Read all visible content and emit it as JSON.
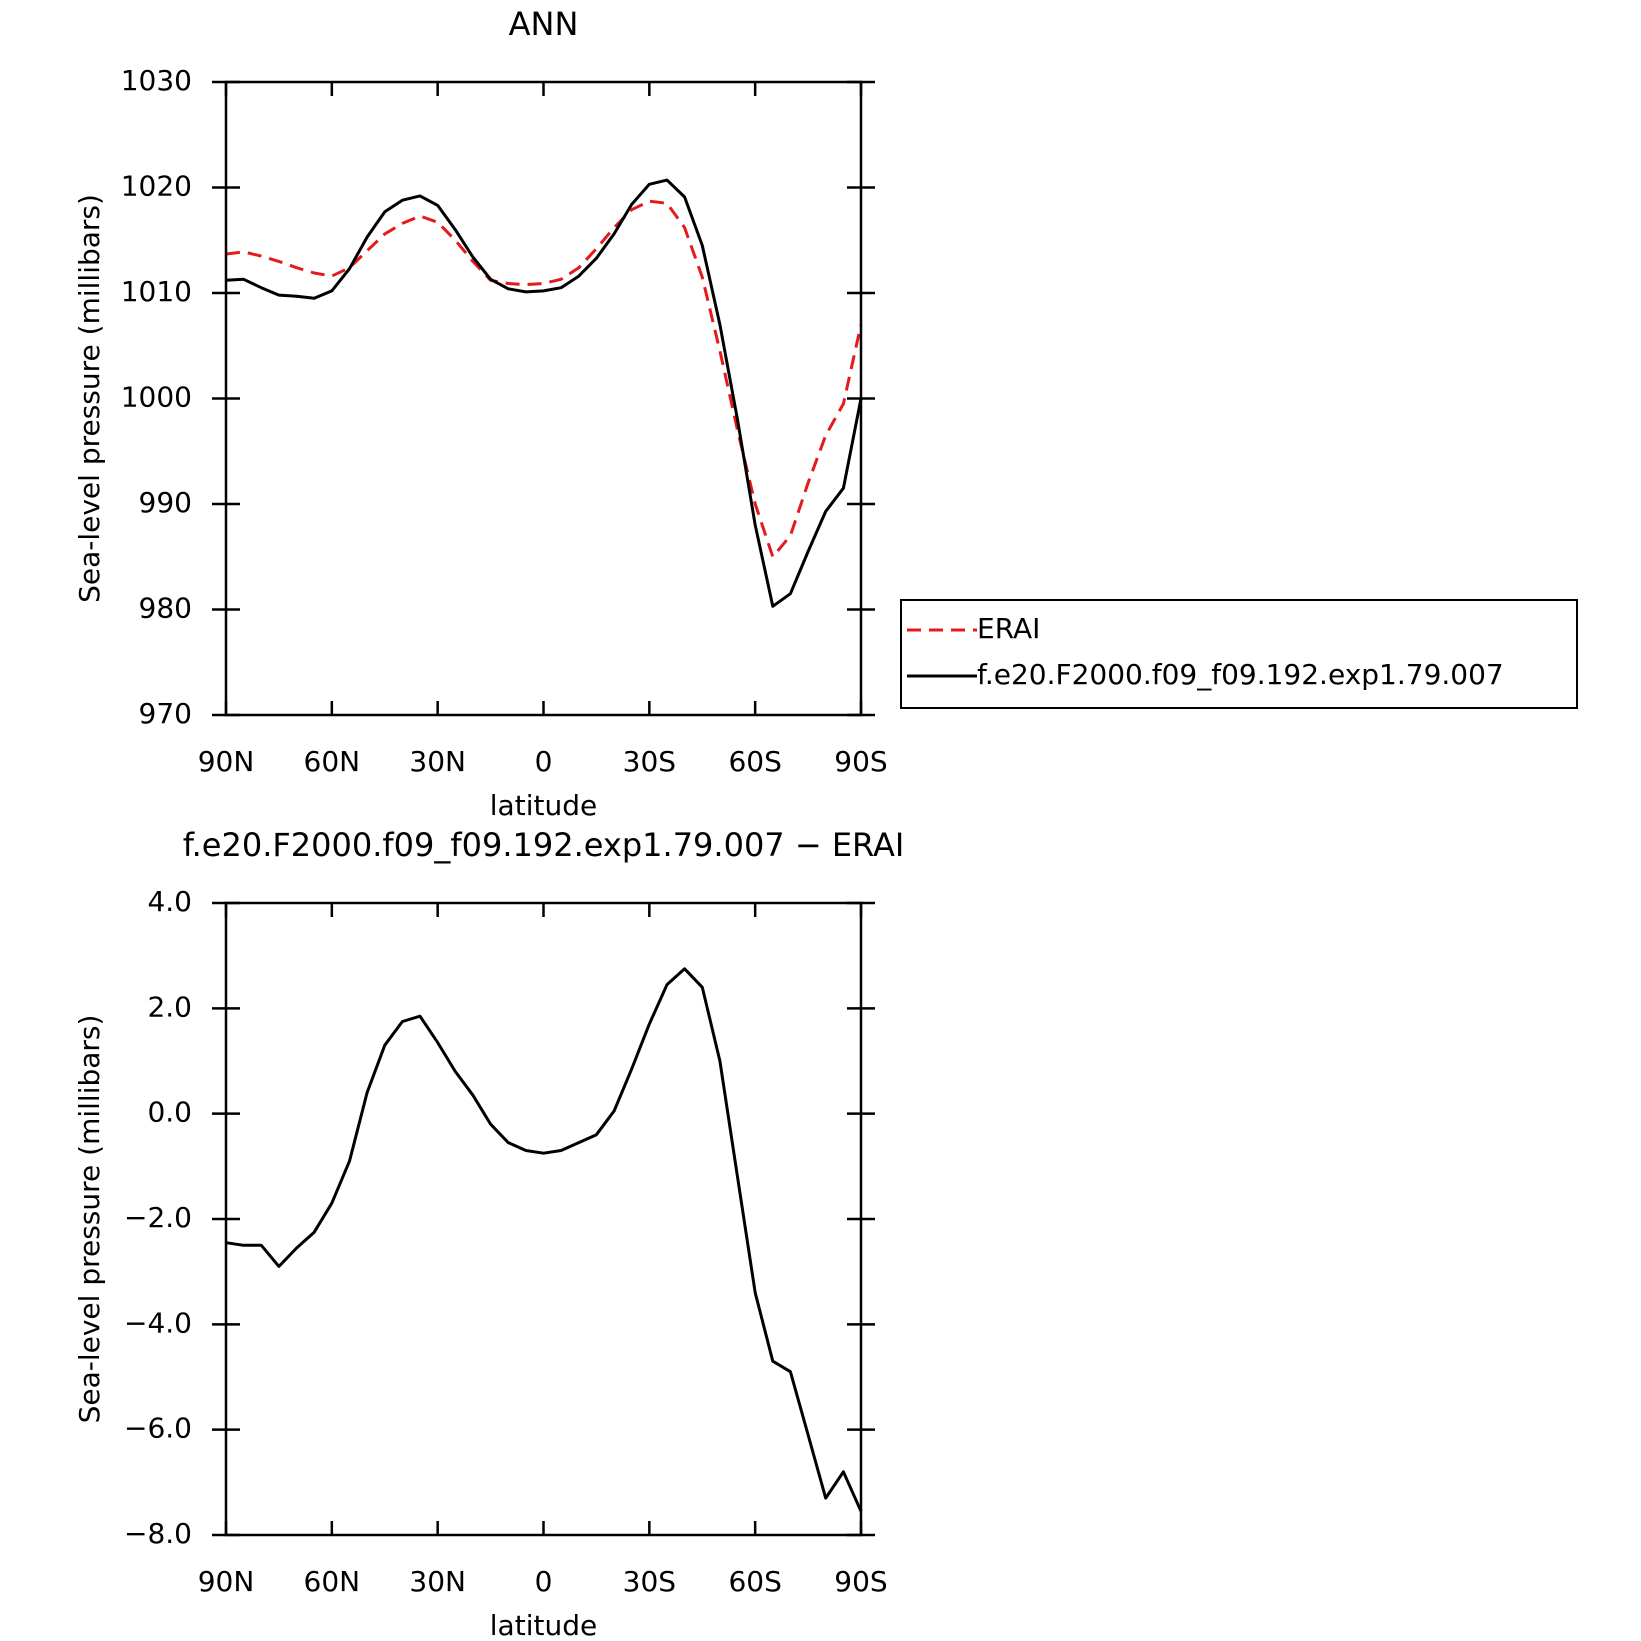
{
  "chart_data": [
    {
      "type": "line",
      "title": "ANN",
      "xlabel": "latitude",
      "ylabel": "Sea-level pressure (millibars)",
      "x": [
        90,
        85,
        80,
        75,
        70,
        65,
        60,
        55,
        50,
        45,
        40,
        35,
        30,
        25,
        20,
        15,
        10,
        5,
        0,
        -5,
        -10,
        -15,
        -20,
        -25,
        -30,
        -35,
        -40,
        -45,
        -50,
        -55,
        -60,
        -65,
        -70,
        -75,
        -80,
        -85,
        -90
      ],
      "series": [
        {
          "name": "ERAI",
          "color": "#e41a1c",
          "dash": true,
          "values": [
            1013.7,
            1013.9,
            1013.5,
            1013.0,
            1012.4,
            1011.9,
            1011.6,
            1012.4,
            1014.0,
            1015.6,
            1016.6,
            1017.3,
            1016.7,
            1015.0,
            1013.0,
            1011.2,
            1010.9,
            1010.8,
            1010.9,
            1011.3,
            1012.4,
            1014.2,
            1016.2,
            1017.9,
            1018.7,
            1018.5,
            1016.2,
            1011.5,
            1004.5,
            997,
            990,
            985.0,
            987,
            992,
            996.5,
            999.5,
            1007
          ]
        },
        {
          "name": "f.e20.F2000.f09_f09.192.exp1.79.007",
          "color": "#000000",
          "dash": false,
          "values": [
            1011.2,
            1011.3,
            1010.5,
            1009.8,
            1009.7,
            1009.5,
            1010.2,
            1012.3,
            1015.3,
            1017.7,
            1018.8,
            1019.2,
            1018.3,
            1016.0,
            1013.4,
            1011.3,
            1010.4,
            1010.1,
            1010.2,
            1010.5,
            1011.6,
            1013.3,
            1015.6,
            1018.4,
            1020.3,
            1020.7,
            1019.1,
            1014.5,
            1007,
            998,
            988,
            980.3,
            981.5,
            985.5,
            989.3,
            991.5,
            1000
          ]
        }
      ],
      "xlim": [
        90,
        -90
      ],
      "xticks": [
        {
          "value": 90,
          "label": "90N"
        },
        {
          "value": 60,
          "label": "60N"
        },
        {
          "value": 30,
          "label": "30N"
        },
        0,
        {
          "value": -30,
          "label": "30S"
        },
        {
          "value": -60,
          "label": "60S"
        },
        {
          "value": -90,
          "label": "90S"
        }
      ],
      "ylim": [
        970,
        1030
      ],
      "yticks": [
        970,
        980,
        990,
        1000,
        1010,
        1020,
        1030
      ],
      "legend": "right"
    },
    {
      "type": "line",
      "title": "f.e20.F2000.f09_f09.192.exp1.79.007 − ERAI",
      "xlabel": "latitude",
      "ylabel": "Sea-level pressure (millibars)",
      "x": [
        90,
        85,
        80,
        75,
        70,
        65,
        60,
        55,
        50,
        45,
        40,
        35,
        30,
        25,
        20,
        15,
        10,
        5,
        0,
        -5,
        -10,
        -15,
        -20,
        -25,
        -30,
        -35,
        -40,
        -45,
        -50,
        -55,
        -60,
        -65,
        -70,
        -75,
        -80,
        -85,
        -90
      ],
      "values": [
        -2.45,
        -2.5,
        -2.5,
        -2.9,
        -2.55,
        -2.25,
        -1.7,
        -0.9,
        0.4,
        1.3,
        1.75,
        1.85,
        1.35,
        0.8,
        0.35,
        -0.2,
        -0.55,
        -0.7,
        -0.75,
        -0.7,
        -0.55,
        -0.4,
        0.05,
        0.85,
        1.7,
        2.45,
        2.75,
        2.4,
        1.0,
        -1.2,
        -3.4,
        -4.7,
        -4.9,
        -6.1,
        -7.3,
        -6.8,
        -7.55
      ],
      "color": "#000000",
      "xlim": [
        90,
        -90
      ],
      "xticks": [
        {
          "value": 90,
          "label": "90N"
        },
        {
          "value": 60,
          "label": "60N"
        },
        {
          "value": 30,
          "label": "30N"
        },
        0,
        {
          "value": -30,
          "label": "30S"
        },
        {
          "value": -60,
          "label": "60S"
        },
        {
          "value": -90,
          "label": "90S"
        }
      ],
      "ylim": [
        -8,
        4
      ],
      "yticks": [
        {
          "value": -8,
          "label": "−8.0"
        },
        {
          "value": -6,
          "label": "−6.0"
        },
        {
          "value": -4,
          "label": "−4.0"
        },
        {
          "value": -2,
          "label": "−2.0"
        },
        {
          "value": 0,
          "label": "0.0"
        },
        {
          "value": 2,
          "label": "2.0"
        },
        {
          "value": 4,
          "label": "4.0"
        }
      ]
    }
  ]
}
